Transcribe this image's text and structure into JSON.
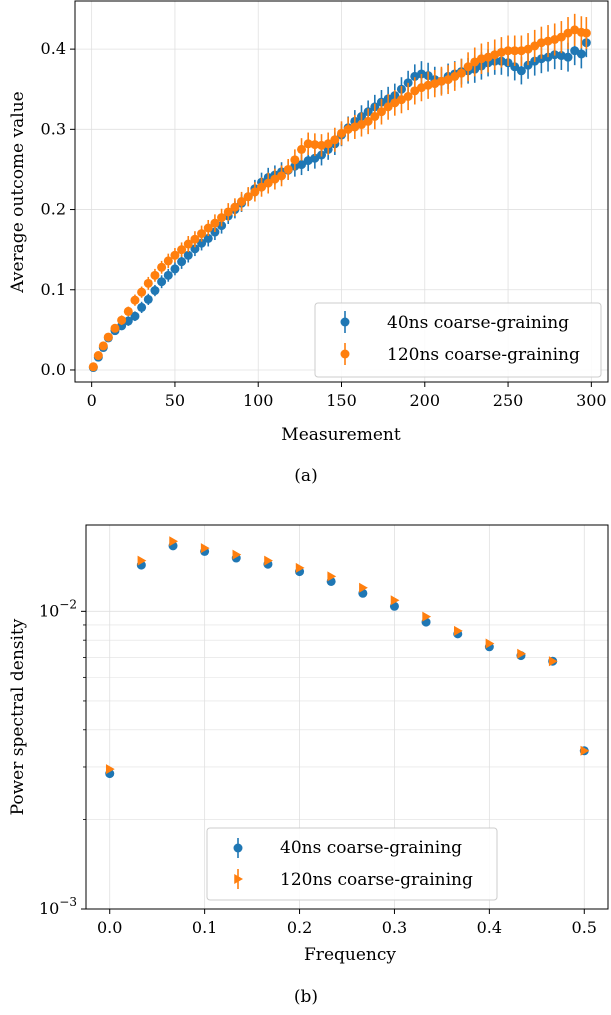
{
  "colors": {
    "series1": "#1f77b4",
    "series2": "#ff7f0e",
    "grid": "#e0e0e0"
  },
  "chart_data": [
    {
      "type": "scatter",
      "caption": "(a)",
      "xlabel": "Measurement",
      "ylabel": "Average outcome value",
      "xlim": [
        -10,
        310
      ],
      "ylim": [
        -0.015,
        0.46
      ],
      "xticks": [
        0,
        50,
        100,
        150,
        200,
        250,
        300
      ],
      "yticks": [
        0.0,
        0.1,
        0.2,
        0.3,
        0.4
      ],
      "xtick_labels": [
        "0",
        "50",
        "100",
        "150",
        "200",
        "250",
        "300"
      ],
      "ytick_labels": [
        "0.0",
        "0.1",
        "0.2",
        "0.3",
        "0.4"
      ],
      "grid": true,
      "legend_position": "lower-right",
      "series": [
        {
          "name": "40ns coarse-graining",
          "marker": "circle",
          "error_bars": true,
          "x": [
            1,
            4,
            7,
            10,
            14,
            18,
            22,
            26,
            30,
            34,
            38,
            42,
            46,
            50,
            54,
            58,
            62,
            66,
            70,
            74,
            78,
            82,
            86,
            90,
            94,
            98,
            102,
            106,
            110,
            114,
            118,
            122,
            126,
            130,
            134,
            138,
            142,
            146,
            150,
            154,
            158,
            162,
            166,
            170,
            174,
            178,
            182,
            186,
            190,
            194,
            198,
            202,
            206,
            210,
            214,
            218,
            222,
            226,
            230,
            234,
            238,
            242,
            246,
            250,
            254,
            258,
            262,
            266,
            270,
            274,
            278,
            282,
            286,
            290,
            294,
            297
          ],
          "y": [
            0.003,
            0.016,
            0.028,
            0.04,
            0.049,
            0.055,
            0.061,
            0.067,
            0.078,
            0.088,
            0.099,
            0.11,
            0.118,
            0.126,
            0.135,
            0.143,
            0.151,
            0.158,
            0.164,
            0.172,
            0.18,
            0.192,
            0.2,
            0.208,
            0.216,
            0.226,
            0.234,
            0.24,
            0.243,
            0.247,
            0.249,
            0.254,
            0.256,
            0.261,
            0.264,
            0.268,
            0.275,
            0.282,
            0.293,
            0.302,
            0.31,
            0.316,
            0.322,
            0.328,
            0.334,
            0.338,
            0.342,
            0.35,
            0.358,
            0.366,
            0.369,
            0.367,
            0.362,
            0.36,
            0.366,
            0.369,
            0.372,
            0.373,
            0.375,
            0.379,
            0.383,
            0.385,
            0.385,
            0.383,
            0.378,
            0.373,
            0.38,
            0.385,
            0.388,
            0.39,
            0.393,
            0.392,
            0.39,
            0.398,
            0.394,
            0.408
          ],
          "err": [
            0.002,
            0.003,
            0.004,
            0.004,
            0.005,
            0.005,
            0.006,
            0.006,
            0.007,
            0.007,
            0.007,
            0.008,
            0.008,
            0.008,
            0.009,
            0.009,
            0.009,
            0.009,
            0.01,
            0.01,
            0.01,
            0.01,
            0.011,
            0.011,
            0.011,
            0.011,
            0.012,
            0.012,
            0.012,
            0.012,
            0.012,
            0.013,
            0.013,
            0.013,
            0.013,
            0.013,
            0.013,
            0.014,
            0.014,
            0.014,
            0.014,
            0.014,
            0.014,
            0.015,
            0.015,
            0.015,
            0.015,
            0.015,
            0.015,
            0.015,
            0.016,
            0.016,
            0.016,
            0.016,
            0.016,
            0.016,
            0.016,
            0.016,
            0.017,
            0.017,
            0.017,
            0.017,
            0.017,
            0.017,
            0.017,
            0.017,
            0.017,
            0.018,
            0.018,
            0.018,
            0.018,
            0.018,
            0.018,
            0.018,
            0.018,
            0.018
          ]
        },
        {
          "name": "120ns coarse-graining",
          "marker": "circle",
          "error_bars": true,
          "x": [
            1,
            4,
            7,
            10,
            14,
            18,
            22,
            26,
            30,
            34,
            38,
            42,
            46,
            50,
            54,
            58,
            62,
            66,
            70,
            74,
            78,
            82,
            86,
            90,
            94,
            98,
            102,
            106,
            110,
            114,
            118,
            122,
            126,
            130,
            134,
            138,
            142,
            146,
            150,
            154,
            158,
            162,
            166,
            170,
            174,
            178,
            182,
            186,
            190,
            194,
            198,
            202,
            206,
            210,
            214,
            218,
            222,
            226,
            230,
            234,
            238,
            242,
            246,
            250,
            254,
            258,
            262,
            266,
            270,
            274,
            278,
            282,
            286,
            290,
            294,
            297
          ],
          "y": [
            0.004,
            0.018,
            0.03,
            0.041,
            0.052,
            0.062,
            0.073,
            0.087,
            0.097,
            0.108,
            0.118,
            0.128,
            0.136,
            0.143,
            0.15,
            0.157,
            0.163,
            0.17,
            0.177,
            0.183,
            0.19,
            0.197,
            0.203,
            0.21,
            0.216,
            0.222,
            0.228,
            0.233,
            0.238,
            0.242,
            0.25,
            0.262,
            0.275,
            0.282,
            0.281,
            0.28,
            0.282,
            0.287,
            0.295,
            0.3,
            0.303,
            0.306,
            0.31,
            0.316,
            0.322,
            0.328,
            0.333,
            0.337,
            0.341,
            0.348,
            0.352,
            0.355,
            0.357,
            0.36,
            0.362,
            0.366,
            0.37,
            0.378,
            0.384,
            0.388,
            0.39,
            0.393,
            0.396,
            0.398,
            0.398,
            0.398,
            0.4,
            0.404,
            0.408,
            0.41,
            0.412,
            0.415,
            0.42,
            0.424,
            0.421,
            0.42
          ],
          "err": [
            0.002,
            0.003,
            0.004,
            0.004,
            0.005,
            0.006,
            0.006,
            0.007,
            0.007,
            0.008,
            0.008,
            0.008,
            0.009,
            0.009,
            0.009,
            0.01,
            0.01,
            0.01,
            0.01,
            0.011,
            0.011,
            0.011,
            0.011,
            0.012,
            0.012,
            0.012,
            0.012,
            0.013,
            0.013,
            0.013,
            0.013,
            0.013,
            0.014,
            0.014,
            0.014,
            0.014,
            0.014,
            0.015,
            0.015,
            0.015,
            0.015,
            0.015,
            0.016,
            0.016,
            0.016,
            0.016,
            0.016,
            0.017,
            0.017,
            0.017,
            0.017,
            0.017,
            0.017,
            0.018,
            0.018,
            0.018,
            0.018,
            0.018,
            0.018,
            0.019,
            0.019,
            0.019,
            0.019,
            0.019,
            0.019,
            0.019,
            0.02,
            0.02,
            0.02,
            0.02,
            0.02,
            0.02,
            0.02,
            0.02,
            0.02,
            0.02
          ]
        }
      ]
    },
    {
      "type": "scatter",
      "caption": "(b)",
      "xlabel": "Frequency",
      "ylabel": "Power spectral density",
      "xlim": [
        -0.025,
        0.525
      ],
      "ylim": [
        0.001,
        0.0195
      ],
      "yscale": "log",
      "xticks": [
        0.0,
        0.1,
        0.2,
        0.3,
        0.4,
        0.5
      ],
      "xtick_labels": [
        "0.0",
        "0.1",
        "0.2",
        "0.3",
        "0.4",
        "0.5"
      ],
      "yticks_major": [
        0.001,
        0.01
      ],
      "ytick_labels": [
        {
          "base": "10",
          "exp": "−3"
        },
        {
          "base": "10",
          "exp": "−2"
        }
      ],
      "yticks_minor": [
        0.002,
        0.003,
        0.004,
        0.005,
        0.006,
        0.007,
        0.008,
        0.009
      ],
      "grid": true,
      "legend_position": "lower-center",
      "series": [
        {
          "name": "40ns coarse-graining",
          "marker": "circle",
          "x": [
            0.0,
            0.0333,
            0.0667,
            0.1,
            0.1333,
            0.1667,
            0.2,
            0.2333,
            0.2667,
            0.3,
            0.3333,
            0.3667,
            0.4,
            0.4333,
            0.4667,
            0.5
          ],
          "y": [
            0.00285,
            0.0143,
            0.0166,
            0.0159,
            0.0151,
            0.0144,
            0.0136,
            0.0126,
            0.0115,
            0.0104,
            0.0092,
            0.0084,
            0.0076,
            0.0071,
            0.0068,
            0.0034
          ]
        },
        {
          "name": "120ns coarse-graining",
          "marker": "triangle-right",
          "x": [
            0.0,
            0.0333,
            0.0667,
            0.1,
            0.1333,
            0.1667,
            0.2,
            0.2333,
            0.2667,
            0.3,
            0.3333,
            0.3667,
            0.4,
            0.4333,
            0.4667,
            0.5
          ],
          "y": [
            0.00295,
            0.0148,
            0.0172,
            0.0163,
            0.0155,
            0.0148,
            0.014,
            0.0131,
            0.012,
            0.0109,
            0.0096,
            0.0086,
            0.0078,
            0.0072,
            0.0068,
            0.0034
          ]
        }
      ]
    }
  ]
}
